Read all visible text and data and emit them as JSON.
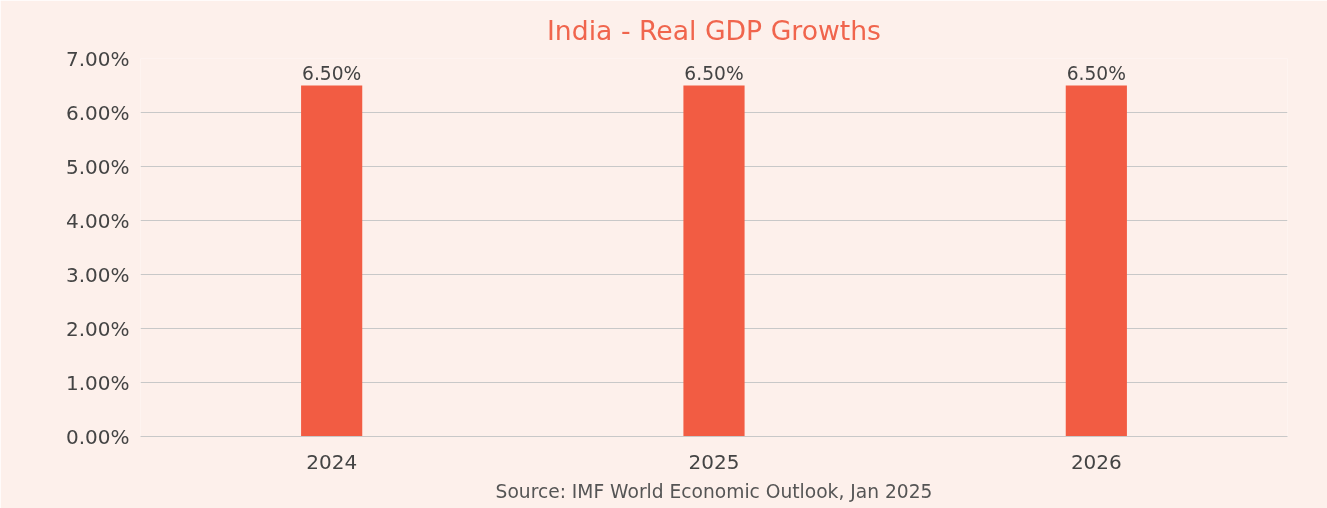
{
  "chart_data": {
    "type": "bar",
    "title": "India - Real GDP Growths",
    "categories": [
      "2024",
      "2025",
      "2026"
    ],
    "values": [
      6.5,
      6.5,
      6.5
    ],
    "value_labels": [
      "6.50%",
      "6.50%",
      "6.50%"
    ],
    "color": "#f25c43",
    "ylim": [
      0,
      7
    ],
    "yticks": [
      {
        "value": 0,
        "label": "0.00%"
      },
      {
        "value": 1,
        "label": "1.00%"
      },
      {
        "value": 2,
        "label": "2.00%"
      },
      {
        "value": 3,
        "label": "3.00%"
      },
      {
        "value": 4,
        "label": "4.00%"
      },
      {
        "value": 5,
        "label": "5.00%"
      },
      {
        "value": 6,
        "label": "6.00%"
      },
      {
        "value": 7,
        "label": "7.00%"
      }
    ],
    "grid": "y",
    "annotations": [
      "Source: IMF World Economic Outlook, Jan 2025"
    ]
  }
}
